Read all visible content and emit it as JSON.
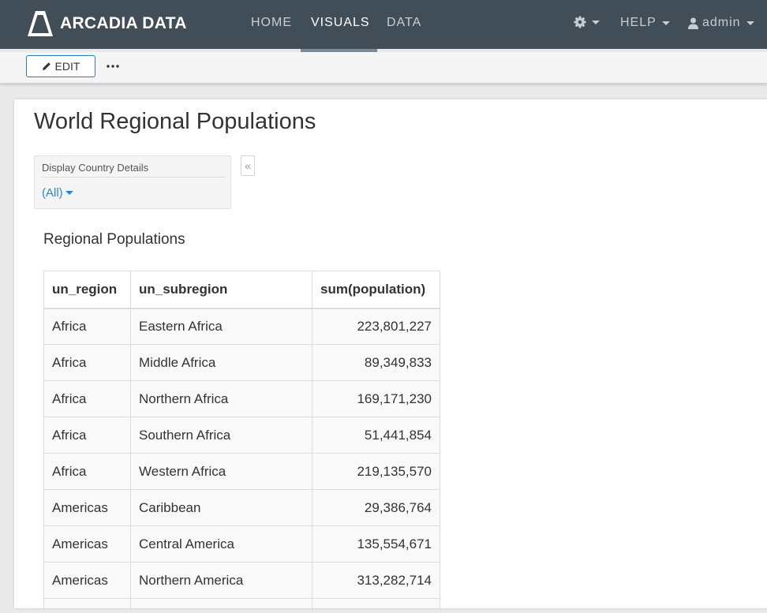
{
  "brand": {
    "name": "ARCADIA DATA"
  },
  "nav": {
    "links": [
      {
        "label": "HOME"
      },
      {
        "label": "VISUALS"
      },
      {
        "label": "DATA"
      }
    ],
    "help_label": "HELP",
    "user_label": "admin"
  },
  "toolbar": {
    "edit_label": "EDIT"
  },
  "page": {
    "title": "World Regional Populations"
  },
  "filter": {
    "label": "Display Country Details",
    "value": "(All)"
  },
  "visual": {
    "title": "Regional Populations",
    "columns": [
      "un_region",
      "un_subregion",
      "sum(population)"
    ],
    "rows": [
      [
        "Africa",
        "Eastern Africa",
        "223,801,227"
      ],
      [
        "Africa",
        "Middle Africa",
        "89,349,833"
      ],
      [
        "Africa",
        "Northern Africa",
        "169,171,230"
      ],
      [
        "Africa",
        "Southern Africa",
        "51,441,854"
      ],
      [
        "Africa",
        "Western Africa",
        "219,135,570"
      ],
      [
        "Americas",
        "Caribbean",
        "29,386,764"
      ],
      [
        "Americas",
        "Central America",
        "135,554,671"
      ],
      [
        "Americas",
        "Northern America",
        "313,282,714"
      ]
    ]
  }
}
